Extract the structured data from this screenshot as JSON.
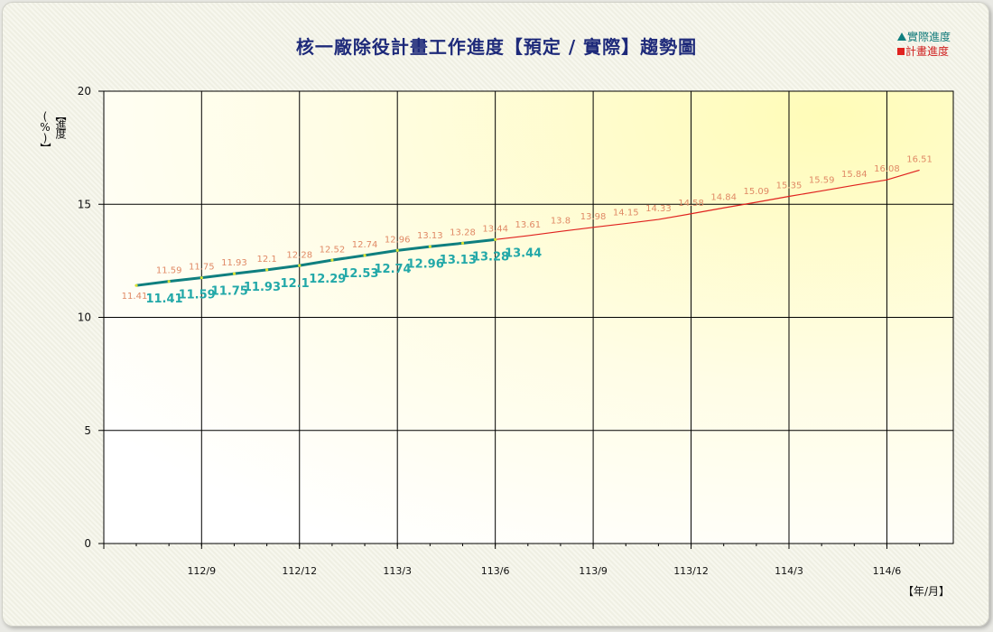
{
  "chart_data": {
    "type": "line",
    "title": "核一廠除役計畫工作進度【預定 / 實際】趨勢圖",
    "ylabel": "【進度(%)】",
    "xlabel": "【年/月】",
    "ylim": [
      0,
      20
    ],
    "yticks": [
      "0",
      "5",
      "10",
      "15",
      "20"
    ],
    "xtick_labels": [
      "112/9",
      "112/12",
      "113/3",
      "113/6",
      "113/9",
      "113/12",
      "114/3",
      "114/6"
    ],
    "grid": true,
    "legend_position": "top-right",
    "series": [
      {
        "name": "實際進度",
        "color": "#0f7f7f",
        "values": [
          11.41,
          11.59,
          11.75,
          11.93,
          12.1,
          12.29,
          12.53,
          12.74,
          12.96,
          13.13,
          13.28,
          13.44
        ]
      },
      {
        "name": "計畫進度",
        "color": "#e0221f",
        "values": [
          11.41,
          11.59,
          11.75,
          11.93,
          12.1,
          12.28,
          12.52,
          12.74,
          12.96,
          13.13,
          13.28,
          13.44,
          13.61,
          13.8,
          13.98,
          14.15,
          14.33,
          14.58,
          14.84,
          15.09,
          15.35,
          15.59,
          15.84,
          16.08,
          16.51
        ]
      }
    ]
  }
}
